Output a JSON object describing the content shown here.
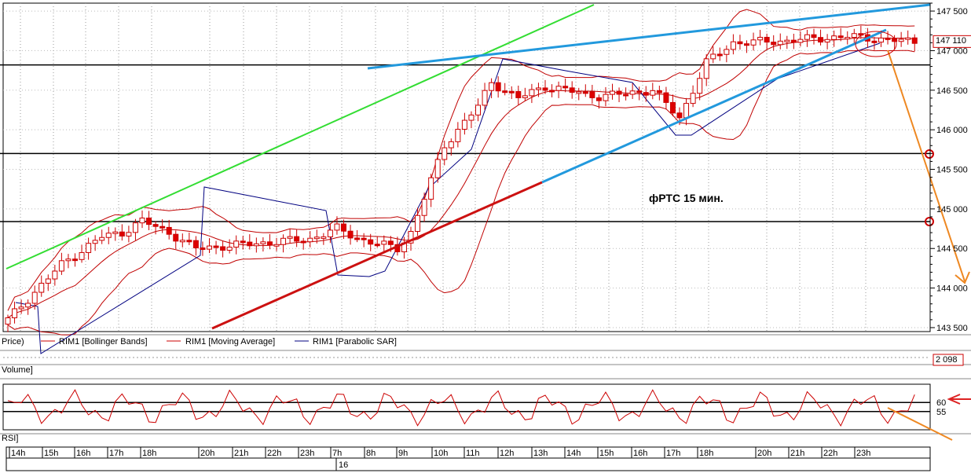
{
  "chart_data": {
    "type": "candlestick",
    "annotation": "фРТС   15 мин.",
    "price_axis": {
      "ticks": [
        "143 500",
        "144 000",
        "144 500",
        "145 000",
        "145 500",
        "146 000",
        "146 500",
        "147 000",
        "147 500"
      ],
      "tick_values": [
        143500,
        144000,
        144500,
        145000,
        145500,
        146000,
        146500,
        147000,
        147500
      ],
      "ylim": [
        143450,
        147600
      ],
      "last_price_label": "147 110",
      "last_price": 147110
    },
    "legend": {
      "price": "Price)",
      "bollinger": "RIM1 [Bollinger Bands]",
      "ma": "RIM1 [Moving Average]",
      "sar": "RIM1 [Parabolic SAR]"
    },
    "volume": {
      "label": "Volume]",
      "last_value_label": "2 098"
    },
    "rsi": {
      "label": "RSI]",
      "ticks": [
        "60",
        "55"
      ],
      "tick_values": [
        60,
        55
      ],
      "ylim": [
        45,
        70
      ]
    },
    "time_axis": {
      "labels": [
        "14h",
        "15h",
        "16h",
        "17h",
        "18h",
        "20h",
        "21h",
        "22h",
        "23h",
        "7h",
        "8h",
        "9h",
        "10h",
        "11h",
        "12h",
        "13h",
        "14h",
        "15h",
        "16h",
        "17h",
        "18h",
        "20h",
        "21h",
        "22h",
        "23h"
      ],
      "date_label": "16"
    },
    "horizontal_levels": [
      146820,
      145700,
      144840
    ],
    "colors": {
      "candle_up": "#ffffff",
      "candle_down": "#dd0000",
      "bands": "#c00000",
      "sar": "#000080",
      "support_line": "#2299dd",
      "channel_green": "#33dd33",
      "trend_red": "#cc1111",
      "forecast": "#ee8822"
    }
  }
}
